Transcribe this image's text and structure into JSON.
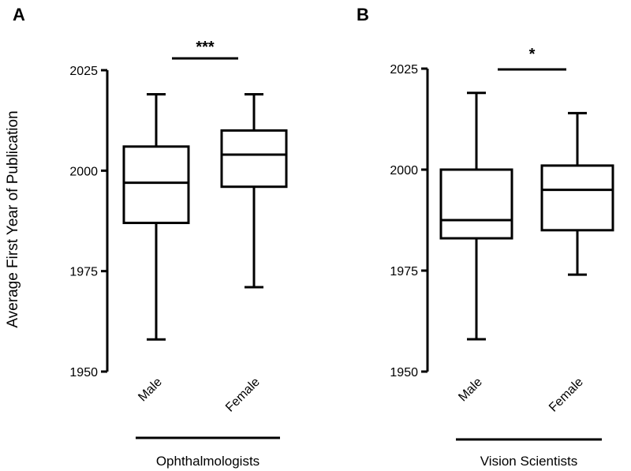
{
  "shared_ylabel": "Average First Year of Publication",
  "chart_data": [
    {
      "type": "box",
      "panel_label": "A",
      "group_label": "Ophthalmologists",
      "ylim": [
        1950,
        2025
      ],
      "yticks": [
        1950,
        1975,
        2000,
        2025
      ],
      "categories": [
        "Male",
        "Female"
      ],
      "boxes": [
        {
          "category": "Male",
          "whisker_low": 1958,
          "q1": 1987,
          "median": 1997,
          "q3": 2006,
          "whisker_high": 2019
        },
        {
          "category": "Female",
          "whisker_low": 1971,
          "q1": 1996,
          "median": 2004,
          "q3": 2010,
          "whisker_high": 2019
        }
      ],
      "significance": "***"
    },
    {
      "type": "box",
      "panel_label": "B",
      "group_label": "Vision Scientists",
      "ylim": [
        1950,
        2025
      ],
      "yticks": [
        1950,
        1975,
        2000,
        2025
      ],
      "categories": [
        "Male",
        "Female"
      ],
      "boxes": [
        {
          "category": "Male",
          "whisker_low": 1958,
          "q1": 1983,
          "median": 1987.5,
          "q3": 2000,
          "whisker_high": 2019
        },
        {
          "category": "Female",
          "whisker_low": 1974,
          "q1": 1985,
          "median": 1995,
          "q3": 2001,
          "whisker_high": 2014
        }
      ],
      "significance": "*"
    }
  ]
}
